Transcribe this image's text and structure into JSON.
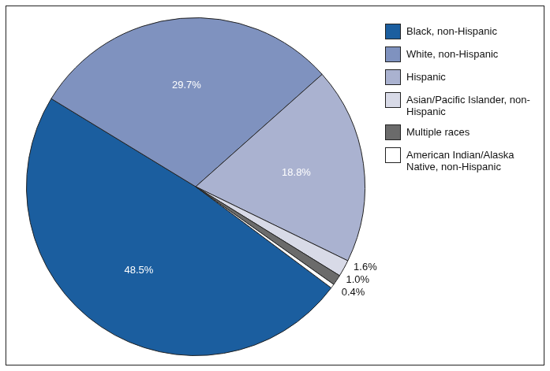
{
  "chart_data": {
    "type": "pie",
    "categories": [
      "Black, non-Hispanic",
      "White, non-Hispanic",
      "Hispanic",
      "Asian/Pacific Islander, non-Hispanic",
      "Multiple races",
      "American Indian/Alaska Native, non-Hispanic"
    ],
    "values": [
      48.5,
      29.7,
      18.8,
      1.6,
      1.0,
      0.4
    ],
    "value_labels": [
      "48.5%",
      "29.7%",
      "18.8%",
      "1.6%",
      "1.0%",
      "0.4%"
    ],
    "colors": [
      "#1b5e9f",
      "#7f92bf",
      "#aab2d0",
      "#d8dae7",
      "#6b6b6b",
      "#ffffff"
    ],
    "legend": "top right",
    "data_labels": true
  }
}
